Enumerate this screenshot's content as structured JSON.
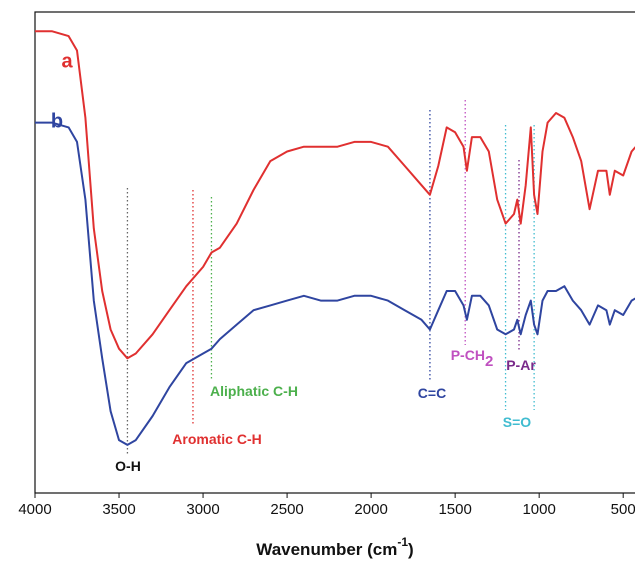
{
  "chart_data": {
    "type": "line",
    "x_label": "Wavenumber (cm",
    "x_label_sup": "-1",
    "x_label_end": ")",
    "x": [
      4000,
      3900,
      3800,
      3750,
      3700,
      3650,
      3600,
      3550,
      3500,
      3450,
      3400,
      3300,
      3200,
      3100,
      3000,
      2950,
      2900,
      2800,
      2700,
      2600,
      2500,
      2400,
      2300,
      2200,
      2100,
      2000,
      1900,
      1800,
      1700,
      1650,
      1600,
      1550,
      1500,
      1450,
      1430,
      1400,
      1350,
      1300,
      1250,
      1200,
      1150,
      1130,
      1110,
      1080,
      1050,
      1030,
      1010,
      980,
      950,
      900,
      850,
      800,
      750,
      700,
      650,
      600,
      580,
      550,
      500,
      450,
      400
    ],
    "series": [
      {
        "name": "a",
        "color": "#e03030",
        "values": [
          96,
          96,
          95,
          92,
          78,
          55,
          42,
          34,
          30,
          28,
          29,
          33,
          38,
          43,
          47,
          50,
          51,
          56,
          63,
          69,
          71,
          72,
          72,
          72,
          73,
          73,
          72,
          68,
          64,
          62,
          68,
          76,
          75,
          72,
          67,
          74,
          74,
          71,
          61,
          56,
          58,
          61,
          56,
          64,
          76,
          62,
          58,
          71,
          77,
          79,
          78,
          74,
          69,
          59,
          67,
          67,
          62,
          67,
          66,
          71,
          73
        ]
      },
      {
        "name": "b",
        "color": "#2f45a0",
        "values": [
          77,
          77,
          76,
          73,
          61,
          40,
          28,
          17,
          11,
          10,
          11,
          16,
          22,
          27,
          29,
          30,
          32,
          35,
          38,
          39,
          40,
          41,
          40,
          40,
          41,
          41,
          40,
          38,
          36,
          34,
          38,
          42,
          42,
          39,
          36,
          41,
          41,
          39,
          34,
          33,
          34,
          36,
          33,
          37,
          40,
          35,
          33,
          40,
          42,
          42,
          43,
          40,
          38,
          35,
          39,
          38,
          35,
          38,
          37,
          40,
          41
        ]
      }
    ],
    "xlim": [
      4000,
      400
    ],
    "xticks": [
      4000,
      3500,
      3000,
      2500,
      2000,
      1500,
      1000,
      500
    ],
    "ylim": [
      0,
      100
    ],
    "annotations": [
      {
        "label": "O-H",
        "x": [
          3450
        ],
        "color": "#111111",
        "line_color": "#666666"
      },
      {
        "label": "Aromatic C-H",
        "x": [
          3060
        ],
        "color": "#e03030",
        "line_color": "#e03030"
      },
      {
        "label": "Aliphatic C-H",
        "x": [
          2950
        ],
        "color": "#4cb04c",
        "line_color": "#4cb04c"
      },
      {
        "label": "C=C",
        "x": [
          1650
        ],
        "color": "#2f45a0",
        "line_color": "#2f45a0"
      },
      {
        "label": "P-CH",
        "sub": "2",
        "x": [
          1440
        ],
        "color": "#c050c0",
        "line_color": "#c050c0"
      },
      {
        "label": "P-Ar",
        "x": [
          1120
        ],
        "color": "#7a2a8a",
        "line_color": "#7a2a8a"
      },
      {
        "label": "S=O",
        "x": [
          1200,
          1030
        ],
        "color": "#40bcd0",
        "line_color": "#40bcd0"
      }
    ]
  }
}
